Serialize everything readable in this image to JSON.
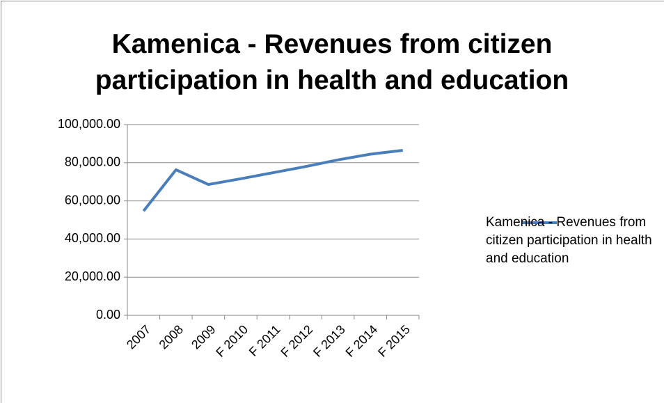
{
  "chart_data": {
    "type": "line",
    "title": "Kamenica - Revenues from citizen participation in health and education",
    "categories": [
      "2007",
      "2008",
      "2009",
      "F 2010",
      "F 2011",
      "F 2012",
      "F 2013",
      "F 2014",
      "F 2015"
    ],
    "series": [
      {
        "name": "Kamenica - Revenues from citizen participation in health and education",
        "color": "#4a7ebb",
        "values": [
          54700,
          76300,
          68600,
          71600,
          74800,
          78000,
          81500,
          84500,
          86500
        ]
      }
    ],
    "ylim": [
      0,
      100000
    ],
    "yticks": [
      {
        "value": 0,
        "label": "0.00"
      },
      {
        "value": 20000,
        "label": "20,000.00"
      },
      {
        "value": 40000,
        "label": "40,000.00"
      },
      {
        "value": 60000,
        "label": "60,000.00"
      },
      {
        "value": 80000,
        "label": "80,000.00"
      },
      {
        "value": 100000,
        "label": "100,000.00"
      }
    ],
    "grid": true,
    "legend": "right"
  }
}
